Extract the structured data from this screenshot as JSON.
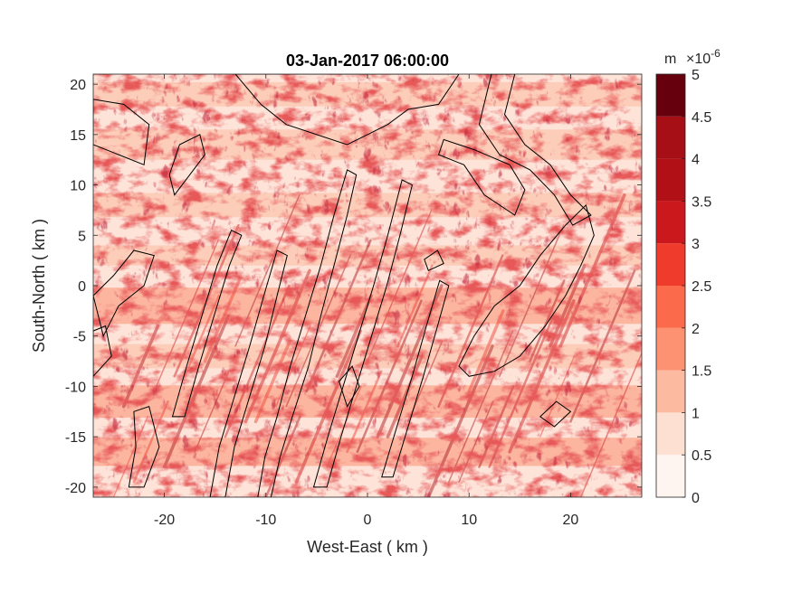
{
  "chart_data": {
    "type": "heatmap",
    "title": "03-Jan-2017 06:00:00",
    "xlabel": "West-East ( km )",
    "ylabel": "South-North ( km )",
    "xlim": [
      -27,
      27
    ],
    "ylim": [
      -21,
      21
    ],
    "x_ticks": [
      -20,
      -10,
      0,
      10,
      20
    ],
    "x_tick_labels": [
      "-20",
      "-10",
      "0",
      "10",
      "20"
    ],
    "y_ticks": [
      -20,
      -15,
      -10,
      -5,
      0,
      5,
      10,
      15,
      20
    ],
    "y_tick_labels": [
      "-20",
      "-15",
      "-10",
      "-5",
      "0",
      "5",
      "10",
      "15",
      "20"
    ],
    "colorbar": {
      "unit": "m",
      "multiplier": "×10",
      "exponent": "-6",
      "levels": [
        0,
        0.5,
        1,
        1.5,
        2,
        2.5,
        3,
        3.5,
        4,
        4.5,
        5
      ],
      "tick_labels": [
        "0",
        "0.5",
        "1",
        "1.5",
        "2",
        "2.5",
        "3",
        "3.5",
        "4",
        "4.5",
        "5"
      ],
      "colors": [
        "#fff5f0",
        "#fee0d2",
        "#fcbba1",
        "#fc9272",
        "#fb6a4a",
        "#ef3b2c",
        "#cb181d",
        "#b01016",
        "#a50f15",
        "#67000d"
      ]
    },
    "grid": false,
    "legend": "none"
  }
}
